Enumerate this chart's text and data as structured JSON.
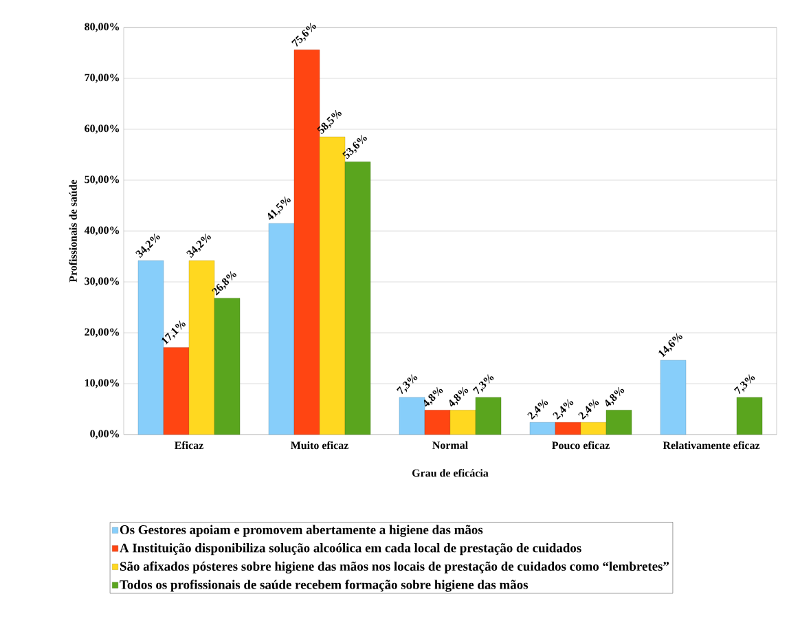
{
  "chart_data": {
    "type": "bar",
    "xlabel": "Grau de eficácia",
    "ylabel": "Profissionais de saúde",
    "categories": [
      "Eficaz",
      "Muito eficaz",
      "Normal",
      "Pouco eficaz",
      "Relativamente eficaz"
    ],
    "series": [
      {
        "name": "Os Gestores apoiam e promovem abertamente a higiene das mãos",
        "color": "#87cefa",
        "values": [
          34.2,
          41.5,
          7.3,
          2.4,
          14.6
        ],
        "value_labels": [
          "34,2%",
          "41,5%",
          "7,3%",
          "2,4%",
          "14,6%"
        ]
      },
      {
        "name": "A Instituição disponibiliza solução alcoólica em cada local de prestação de cuidados",
        "color": "#ff4512",
        "values": [
          17.1,
          75.6,
          4.8,
          2.4,
          null
        ],
        "value_labels": [
          "17,1%",
          "75,6%",
          "4,8%",
          "2,4%",
          null
        ]
      },
      {
        "name": "São afixados pósteres sobre higiene das mãos nos locais de prestação de cuidados como “lembretes”",
        "color": "#ffd820",
        "values": [
          34.2,
          58.5,
          4.8,
          2.4,
          null
        ],
        "value_labels": [
          "34,2%",
          "58,5%",
          "4,8%",
          "2,4%",
          null
        ]
      },
      {
        "name": "Todos os profissionais de saúde recebem formação sobre higiene das mãos",
        "color": "#5aa51e",
        "values": [
          26.8,
          53.6,
          7.3,
          4.8,
          7.3
        ],
        "value_labels": [
          "26,8%",
          "53,6%",
          "7,3%",
          "4,8%",
          "7,3%"
        ]
      }
    ],
    "ylim": [
      0,
      80
    ],
    "yticks": [
      {
        "value": 0,
        "label": "0,00%"
      },
      {
        "value": 10,
        "label": "10,00%"
      },
      {
        "value": 20,
        "label": "20,00%"
      },
      {
        "value": 30,
        "label": "30,00%"
      },
      {
        "value": 40,
        "label": "40,00%"
      },
      {
        "value": 50,
        "label": "50,00%"
      },
      {
        "value": 60,
        "label": "60,00%"
      },
      {
        "value": 70,
        "label": "70,00%"
      },
      {
        "value": 80,
        "label": "80,00%"
      }
    ],
    "grid": "y",
    "legend": "bottom"
  }
}
